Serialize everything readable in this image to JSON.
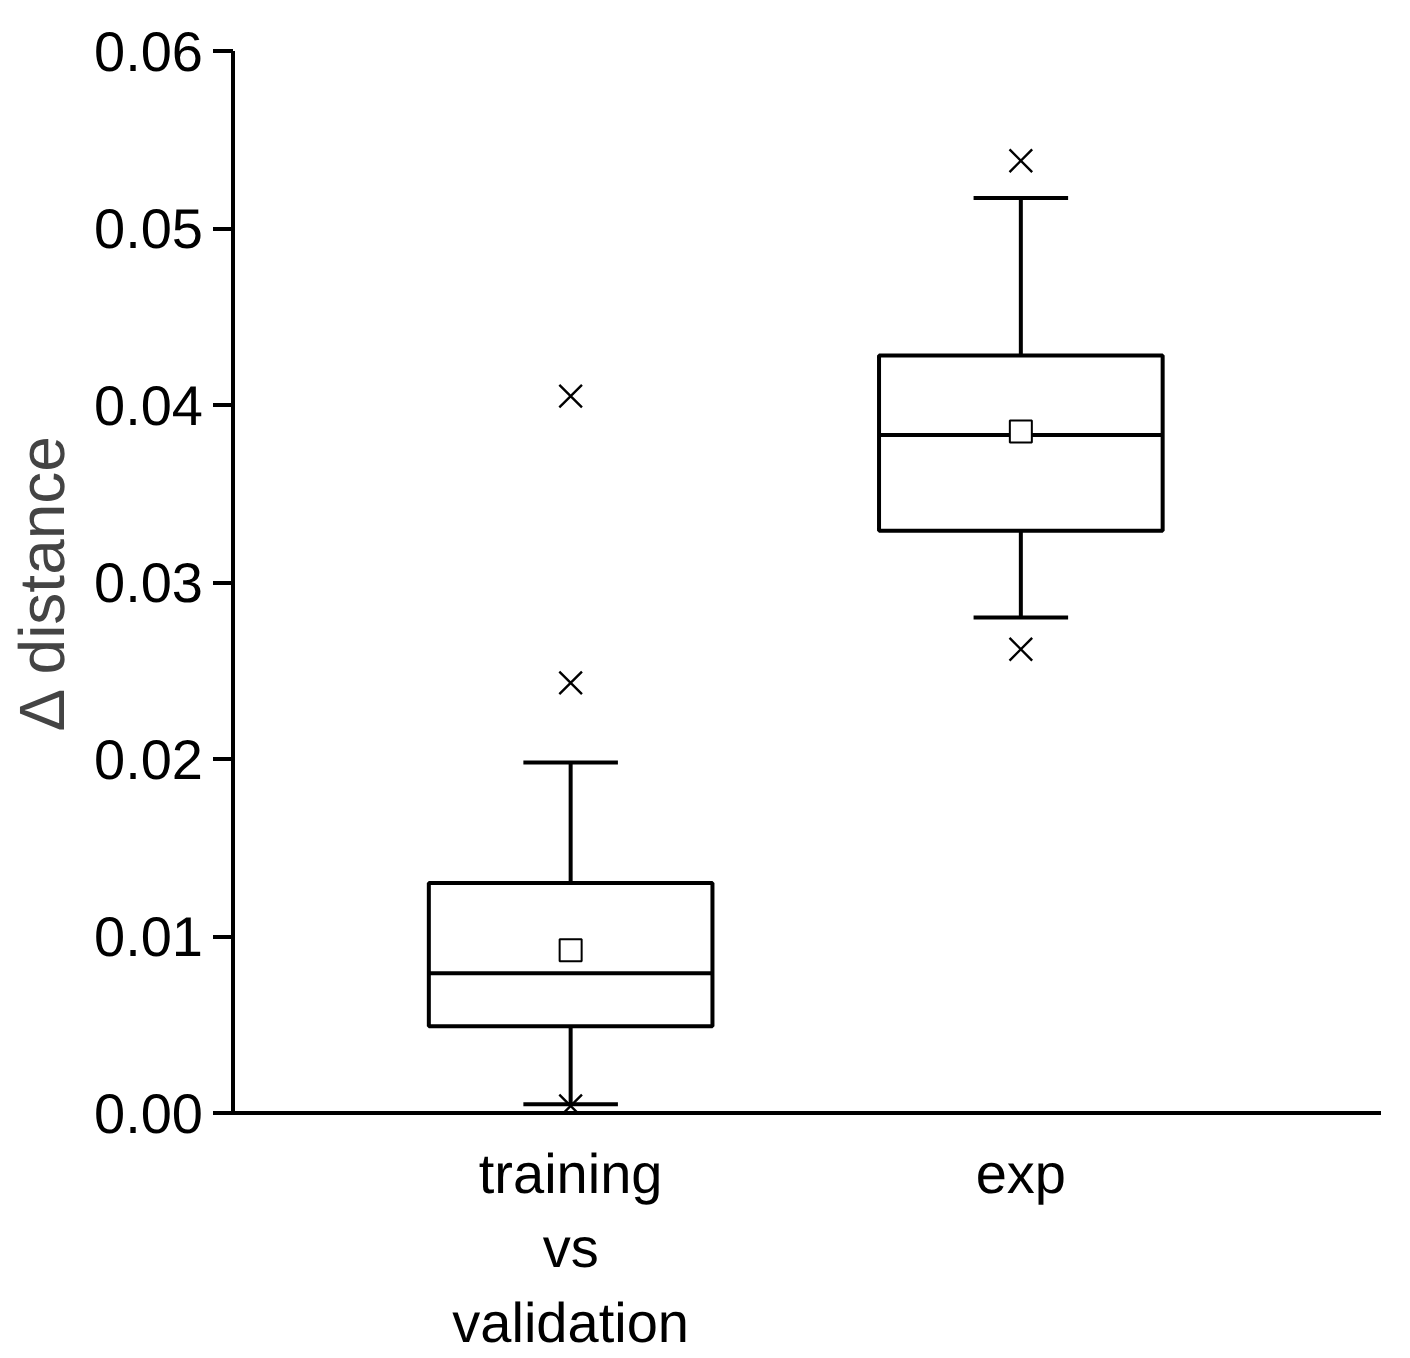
{
  "chart_data": {
    "type": "box",
    "ylabel": "Δ distance",
    "categories": [
      "training\nvs\nvalidation",
      "exp"
    ],
    "boxes": [
      {
        "low": 0.0005,
        "q1": 0.0049,
        "median": 0.0079,
        "q3": 0.013,
        "high": 0.0198,
        "mean": 0.0092,
        "outliers": [
          0.0243,
          0.0405,
          0.0004
        ]
      },
      {
        "low": 0.028,
        "q1": 0.0329,
        "median": 0.0383,
        "q3": 0.0428,
        "high": 0.0517,
        "mean": 0.0385,
        "outliers": [
          0.0538,
          0.0262
        ]
      }
    ],
    "ylim": [
      0,
      0.06
    ],
    "yticks": [
      {
        "value": 0,
        "label": "0.00"
      },
      {
        "value": 0.01,
        "label": "0.01"
      },
      {
        "value": 0.02,
        "label": "0.02"
      },
      {
        "value": 0.03,
        "label": "0.03"
      },
      {
        "value": 0.04,
        "label": "0.04"
      },
      {
        "value": 0.05,
        "label": "0.05"
      },
      {
        "value": 0.06,
        "label": "0.06"
      }
    ],
    "grid": false
  }
}
